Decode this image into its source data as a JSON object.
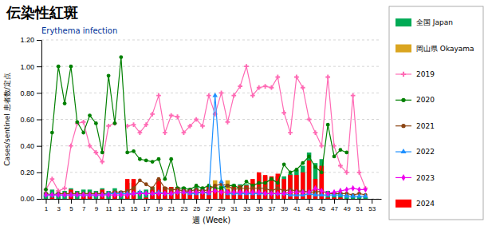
{
  "chart_data": {
    "type": "bar",
    "title": "伝染性紅斑",
    "subtitle": "Erythema infection",
    "xlabel": "週 (Week)",
    "ylabel": "Cases/sentinel 患者数/定点",
    "x": [
      1,
      2,
      3,
      4,
      5,
      6,
      7,
      8,
      9,
      10,
      11,
      12,
      13,
      14,
      15,
      16,
      17,
      18,
      19,
      20,
      21,
      22,
      23,
      24,
      25,
      26,
      27,
      28,
      29,
      30,
      31,
      32,
      33,
      34,
      35,
      36,
      37,
      38,
      39,
      40,
      41,
      42,
      43,
      44,
      45,
      46,
      47,
      48,
      49,
      50,
      51,
      52,
      53
    ],
    "xlim": [
      0.3,
      54.5
    ],
    "xticks": [
      1,
      3,
      5,
      7,
      9,
      11,
      13,
      15,
      17,
      19,
      21,
      23,
      25,
      27,
      29,
      31,
      33,
      35,
      37,
      39,
      41,
      43,
      45,
      47,
      49,
      51,
      53
    ],
    "ylim": [
      0.0,
      1.2
    ],
    "yticks": [
      {
        "value": 0.0,
        "label": "0.00"
      },
      {
        "value": 0.2,
        "label": "0.20"
      },
      {
        "value": 0.4,
        "label": "0.40"
      },
      {
        "value": 0.6,
        "label": "0.60"
      },
      {
        "value": 0.8,
        "label": "0.80"
      },
      {
        "value": 1.0,
        "label": "1.00"
      },
      {
        "value": 1.2,
        "label": "1.20"
      }
    ],
    "grid": true,
    "stacked": false,
    "series": [
      {
        "name": "全国 Japan",
        "type": "bar",
        "color": "#00AA55",
        "values": [
          0.05,
          0.07,
          0.05,
          0.06,
          0.08,
          0.06,
          0.07,
          0.07,
          0.06,
          0.08,
          0.06,
          0.08,
          0.06,
          0.12,
          0.12,
          0.06,
          0.07,
          0.09,
          0.12,
          0.09,
          0.09,
          0.09,
          0.09,
          0.08,
          0.09,
          0.08,
          0.09,
          0.09,
          0.1,
          0.1,
          0.11,
          0.11,
          0.11,
          0.12,
          0.18,
          0.17,
          0.16,
          0.17,
          0.17,
          0.19,
          0.22,
          0.25,
          0.35,
          0.27,
          0.3,
          0.06,
          0.05,
          0.05,
          0.03,
          0.03,
          0.02,
          0.02,
          null
        ]
      },
      {
        "name": "岡山県 Okayama",
        "type": "bar",
        "color": "#DAA520",
        "values": [
          0.0,
          0.0,
          0.0,
          0.0,
          0.0,
          0.0,
          0.0,
          0.0,
          0.0,
          0.0,
          0.0,
          0.0,
          0.0,
          0.0,
          0.0,
          0.0,
          0.0,
          0.0,
          0.0,
          0.0,
          0.0,
          0.0,
          0.0,
          0.0,
          0.0,
          0.0,
          0.0,
          0.14,
          0.0,
          0.14,
          0.0,
          0.0,
          0.0,
          0.0,
          0.0,
          0.0,
          0.0,
          0.0,
          0.0,
          0.0,
          0.0,
          0.0,
          0.0,
          0.0,
          0.0,
          0.0,
          0.0,
          0.0,
          0.0,
          0.0,
          0.0,
          0.0,
          null
        ]
      },
      {
        "name": "2019",
        "type": "line",
        "color": "#FF69B4",
        "marker": "plus",
        "values": [
          0.07,
          0.15,
          0.06,
          0.08,
          0.4,
          0.57,
          0.58,
          0.4,
          0.35,
          0.28,
          0.55,
          0.57,
          null,
          0.55,
          0.56,
          0.5,
          0.56,
          0.64,
          0.78,
          0.5,
          0.63,
          0.62,
          0.5,
          0.55,
          0.6,
          0.55,
          0.78,
          0.64,
          0.8,
          0.58,
          0.78,
          0.85,
          1.0,
          0.78,
          0.84,
          0.85,
          0.84,
          0.92,
          0.65,
          0.5,
          0.92,
          0.84,
          0.6,
          0.5,
          0.4,
          0.92,
          0.4,
          0.25,
          0.2,
          0.78,
          0.2,
          0.08,
          null
        ]
      },
      {
        "name": "2020",
        "type": "line",
        "color": "#008000",
        "marker": "circle",
        "values": [
          0.07,
          0.5,
          1.0,
          0.72,
          1.0,
          0.58,
          0.5,
          0.63,
          0.57,
          0.35,
          0.93,
          0.57,
          1.07,
          0.35,
          0.36,
          0.3,
          0.29,
          0.28,
          0.3,
          0.15,
          0.3,
          0.08,
          0.08,
          0.07,
          0.1,
          0.08,
          0.1,
          0.08,
          0.08,
          0.1,
          0.1,
          0.08,
          0.13,
          0.1,
          0.12,
          0.12,
          0.15,
          0.12,
          0.26,
          0.2,
          0.22,
          0.27,
          0.32,
          0.24,
          0.2,
          0.56,
          0.32,
          0.37,
          0.35,
          null,
          null,
          null,
          null
        ]
      },
      {
        "name": "2021",
        "type": "line",
        "color": "#8B4513",
        "marker": "circle",
        "values": [
          0.04,
          0.03,
          0.04,
          0.04,
          0.04,
          0.04,
          0.04,
          0.04,
          0.04,
          0.04,
          0.04,
          0.05,
          0.05,
          0.06,
          0.08,
          0.14,
          0.11,
          0.08,
          0.15,
          0.08,
          0.07,
          0.07,
          0.06,
          0.06,
          0.07,
          0.06,
          0.07,
          0.1,
          0.11,
          0.1,
          0.07,
          0.08,
          0.08,
          0.08,
          0.08,
          0.08,
          0.06,
          0.08,
          0.06,
          0.07,
          0.06,
          0.06,
          0.05,
          0.05,
          0.06,
          0.04,
          0.04,
          0.04,
          0.04,
          0.03,
          0.04,
          0.03,
          null
        ]
      },
      {
        "name": "2022",
        "type": "line",
        "color": "#1E90FF",
        "marker": "triangle",
        "values": [
          0.03,
          0.03,
          0.03,
          0.03,
          0.03,
          0.03,
          0.03,
          0.03,
          0.03,
          0.03,
          0.04,
          0.04,
          0.04,
          0.04,
          0.04,
          0.05,
          0.04,
          0.04,
          0.05,
          0.04,
          0.04,
          0.05,
          0.05,
          0.04,
          0.04,
          0.05,
          0.04,
          0.78,
          0.13,
          0.04,
          0.04,
          0.04,
          0.04,
          0.04,
          0.04,
          0.04,
          0.04,
          0.04,
          0.04,
          0.03,
          0.03,
          0.03,
          0.04,
          0.03,
          0.03,
          0.03,
          0.03,
          0.03,
          0.02,
          0.02,
          0.02,
          0.02,
          null
        ]
      },
      {
        "name": "2023",
        "type": "line",
        "color": "#EE00EE",
        "marker": "diamond",
        "values": [
          0.03,
          0.03,
          0.03,
          0.03,
          0.03,
          0.03,
          0.03,
          0.03,
          0.03,
          0.03,
          0.03,
          0.03,
          0.03,
          0.03,
          0.04,
          0.04,
          0.04,
          0.04,
          0.04,
          0.04,
          0.04,
          0.05,
          0.05,
          0.05,
          0.05,
          0.05,
          0.05,
          0.06,
          0.05,
          0.05,
          0.05,
          0.05,
          0.05,
          0.05,
          0.05,
          0.04,
          0.04,
          0.04,
          0.04,
          0.05,
          0.05,
          0.05,
          0.05,
          0.08,
          0.06,
          0.04,
          0.05,
          0.06,
          0.07,
          0.08,
          0.07,
          0.07,
          null
        ]
      },
      {
        "name": "2024",
        "type": "bar",
        "color": "#FF0000",
        "values": [
          0.0,
          0.01,
          0.0,
          0.0,
          0.07,
          0.0,
          0.02,
          0.02,
          0.0,
          0.07,
          0.0,
          0.06,
          0.0,
          0.15,
          0.15,
          0.0,
          0.01,
          0.07,
          0.15,
          0.09,
          0.09,
          0.09,
          0.07,
          0.07,
          0.07,
          0.07,
          0.09,
          0.07,
          0.07,
          0.07,
          0.1,
          0.1,
          0.1,
          0.15,
          0.2,
          0.18,
          0.17,
          0.19,
          0.15,
          0.18,
          0.18,
          0.2,
          0.29,
          0.15,
          0.25,
          0.01,
          0.01,
          0.01,
          0.0,
          0.0,
          0.0,
          0.0,
          null
        ]
      }
    ]
  }
}
